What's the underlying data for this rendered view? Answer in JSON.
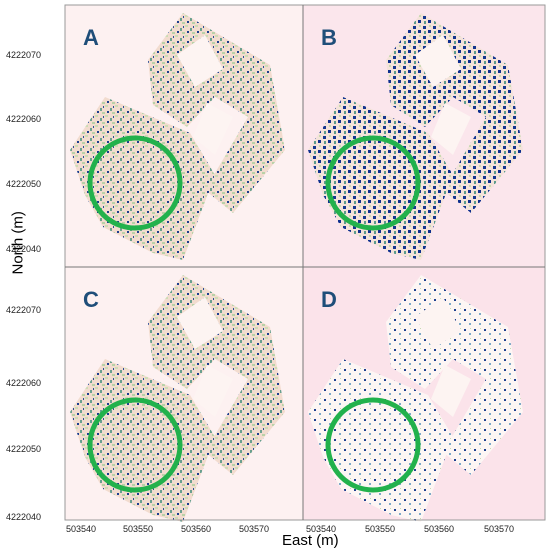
{
  "axes": {
    "x_title": "East (m)",
    "y_title": "North (m)",
    "x_ticks": [
      "503540",
      "503550",
      "503560",
      "503570"
    ],
    "y_ticks": [
      "4222070",
      "4222060",
      "4222050",
      "4222040"
    ]
  },
  "panels": [
    {
      "label": "A",
      "style": "dense-mixed"
    },
    {
      "label": "B",
      "style": "blue-heavy"
    },
    {
      "label": "C",
      "style": "dense-mixed"
    },
    {
      "label": "D",
      "style": "sparse-white"
    }
  ],
  "colors": {
    "background_a": "#fdf1f1",
    "background_b": "#fbe3ea",
    "low": "#f3d8cc",
    "mid": "#cfdcb8",
    "high": "#4f8f8a",
    "peak": "#0f2f8f",
    "circle": "#22b14c",
    "letter": "#1f4e79"
  },
  "circle_label": "highlight-circle"
}
